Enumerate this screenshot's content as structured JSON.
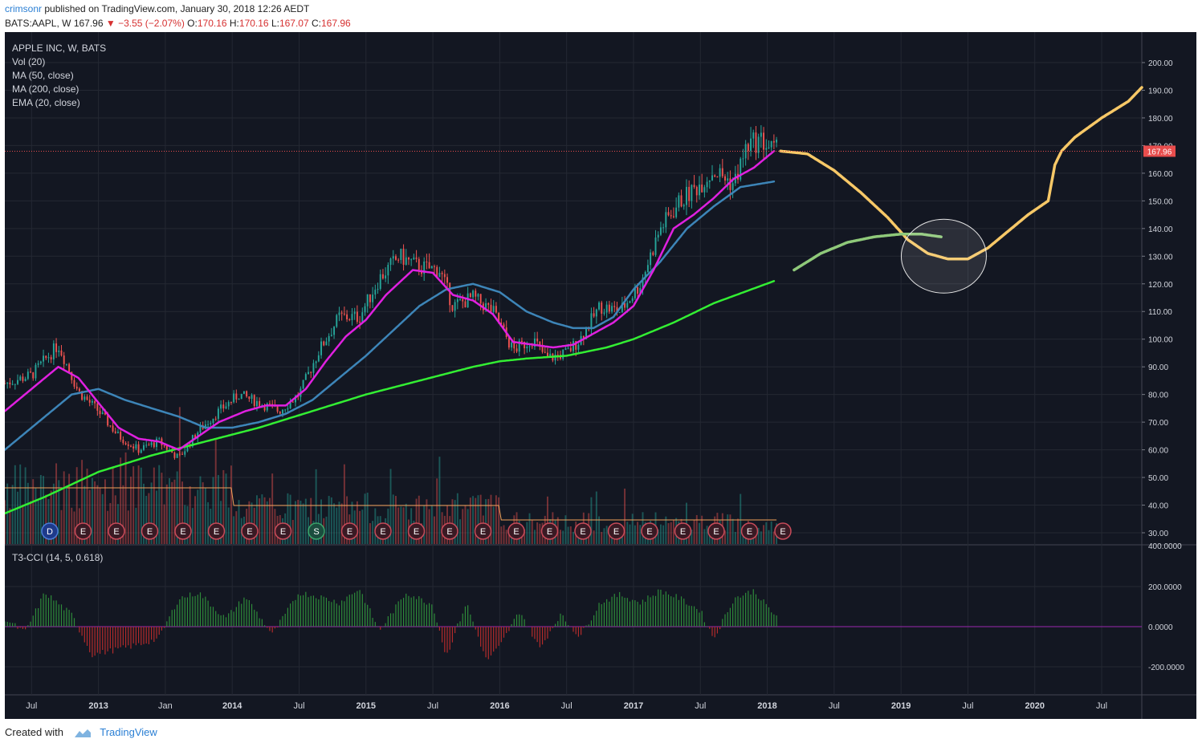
{
  "header": {
    "user": "crimsonr",
    "published": "published on TradingView.com, January 30, 2018 12:26 AEDT",
    "symbol": "BATS:AAPL, W",
    "last": "167.96",
    "change": "−3.55 (−2.07%)",
    "o_label": "O:",
    "o": "170.16",
    "h_label": "H:",
    "h": "170.16",
    "l_label": "L:",
    "l": "167.07",
    "c_label": "C:",
    "c": "167.96"
  },
  "legend": {
    "main": "APPLE INC, W, BATS",
    "vol": "Vol (20)",
    "ma50": "MA (50, close)",
    "ma200": "MA (200, close)",
    "ema20": "EMA (20, close)",
    "cci": "T3-CCI (14, 5, 0.618)"
  },
  "footer": {
    "created": "Created with",
    "brand": "TradingView"
  },
  "colors": {
    "background": "#131722",
    "up": "#26a69a",
    "down": "#ef5350",
    "ema20": "#e020e0",
    "ma50": "#3d85b8",
    "ma200": "#33ee33",
    "projection": "#f7c867",
    "projection_ma": "#8fc97a",
    "price_tag": "#e84d4d"
  },
  "chart_data": {
    "type": "candlestick",
    "title": "",
    "price_axis": {
      "ylim": [
        28,
        205
      ],
      "ticks": [
        "200.00",
        "190.00",
        "180.00",
        "170.00",
        "160.00",
        "150.00",
        "140.00",
        "130.00",
        "120.00",
        "110.00",
        "100.00",
        "90.00",
        "80.00",
        "70.00",
        "60.00",
        "50.00",
        "40.00",
        "30.00"
      ],
      "last_price_label": "167.96"
    },
    "cci_axis": {
      "ylim": [
        -400,
        400
      ],
      "ticks": [
        "400.0000",
        "200.0000",
        "0.0000",
        "-200.0000"
      ]
    },
    "time_axis": {
      "ticks": [
        "Jul",
        "2013",
        "Jan",
        "2014",
        "Jul",
        "2015",
        "Jul",
        "2016",
        "Jul",
        "2017",
        "Jul",
        "2018",
        "Jul",
        "2019",
        "Jul",
        "2020",
        "Jul"
      ],
      "tick_dates": [
        2012.5,
        2013.0,
        2013.5,
        2014.0,
        2014.5,
        2015.0,
        2015.5,
        2016.0,
        2016.5,
        2017.0,
        2017.5,
        2018.0,
        2018.5,
        2019.0,
        2019.5,
        2020.0,
        2020.5
      ],
      "xlim": [
        2012.3,
        2020.8
      ]
    },
    "price_anchors": {
      "x": [
        2012.3,
        2012.5,
        2012.7,
        2012.85,
        2013.0,
        2013.15,
        2013.3,
        2013.45,
        2013.6,
        2013.75,
        2013.9,
        2014.05,
        2014.2,
        2014.35,
        2014.5,
        2014.65,
        2014.8,
        2014.95,
        2015.1,
        2015.25,
        2015.4,
        2015.55,
        2015.65,
        2015.8,
        2015.95,
        2016.1,
        2016.25,
        2016.35,
        2016.5,
        2016.6,
        2016.75,
        2016.9,
        2017.05,
        2017.2,
        2017.35,
        2017.45,
        2017.6,
        2017.75,
        2017.85,
        2017.95,
        2018.05
      ],
      "close": [
        84,
        87,
        98,
        81,
        74,
        65,
        60,
        63,
        57,
        67,
        74,
        80,
        77,
        74,
        80,
        96,
        108,
        108,
        122,
        130,
        126,
        125,
        112,
        115,
        110,
        96,
        100,
        93,
        95,
        100,
        112,
        110,
        120,
        140,
        150,
        154,
        161,
        156,
        170,
        172,
        167.96
      ]
    },
    "ema20_anchors": {
      "x": [
        2012.3,
        2012.5,
        2012.7,
        2012.85,
        2013.0,
        2013.15,
        2013.3,
        2013.45,
        2013.6,
        2013.75,
        2013.9,
        2014.1,
        2014.25,
        2014.4,
        2014.55,
        2014.7,
        2014.85,
        2015.0,
        2015.15,
        2015.35,
        2015.5,
        2015.65,
        2015.8,
        2015.95,
        2016.1,
        2016.25,
        2016.4,
        2016.55,
        2016.7,
        2016.85,
        2017.0,
        2017.15,
        2017.3,
        2017.45,
        2017.6,
        2017.75,
        2017.9,
        2018.05
      ],
      "values": [
        74,
        82,
        90,
        86,
        77,
        68,
        64,
        63,
        60,
        65,
        70,
        74,
        76,
        76,
        82,
        92,
        101,
        107,
        116,
        125,
        124,
        116,
        114,
        109,
        99,
        98,
        97,
        98,
        102,
        106,
        112,
        125,
        140,
        145,
        151,
        158,
        162,
        168
      ]
    },
    "ma50_anchors": {
      "x": [
        2012.3,
        2012.5,
        2012.8,
        2013.0,
        2013.2,
        2013.4,
        2013.6,
        2013.8,
        2014.0,
        2014.2,
        2014.4,
        2014.6,
        2014.8,
        2015.0,
        2015.2,
        2015.4,
        2015.6,
        2015.8,
        2016.0,
        2016.2,
        2016.4,
        2016.55,
        2016.7,
        2016.85,
        2017.0,
        2017.2,
        2017.4,
        2017.6,
        2017.8,
        2018.05
      ],
      "values": [
        60,
        68,
        80,
        82,
        78,
        75,
        72,
        68,
        68,
        70,
        73,
        78,
        86,
        94,
        103,
        112,
        118,
        120,
        117,
        110,
        106,
        104,
        104,
        108,
        118,
        128,
        140,
        148,
        155,
        157
      ]
    },
    "ma200_anchors": {
      "x": [
        2012.3,
        2012.6,
        2013.0,
        2013.4,
        2013.8,
        2014.2,
        2014.6,
        2015.0,
        2015.4,
        2015.8,
        2016.0,
        2016.2,
        2016.5,
        2016.8,
        2017.0,
        2017.3,
        2017.6,
        2018.05
      ],
      "values": [
        37,
        43,
        52,
        58,
        63,
        68,
        74,
        80,
        85,
        90,
        92,
        93,
        94,
        97,
        100,
        106,
        113,
        121
      ]
    },
    "projection_anchors": {
      "x": [
        2018.1,
        2018.3,
        2018.5,
        2018.7,
        2018.9,
        2019.05,
        2019.2,
        2019.35,
        2019.5,
        2019.65,
        2019.8,
        2019.95,
        2020.1,
        2020.15,
        2020.2,
        2020.3,
        2020.5,
        2020.7,
        2020.8
      ],
      "values": [
        168,
        167,
        161,
        153,
        144,
        136,
        131,
        129,
        129,
        133,
        139,
        145,
        150,
        163,
        168,
        173,
        180,
        186,
        191
      ]
    },
    "projection_ma_anchors": {
      "x": [
        2018.2,
        2018.4,
        2018.6,
        2018.8,
        2019.0,
        2019.15,
        2019.3
      ],
      "values": [
        125,
        131,
        135,
        137,
        138,
        138,
        137
      ]
    },
    "earnings_markers": [
      "D",
      "E",
      "E",
      "E",
      "E",
      "E",
      "E",
      "E",
      "S",
      "E",
      "E",
      "E",
      "E",
      "E",
      "E",
      "E",
      "E",
      "E",
      "E",
      "E",
      "E",
      "E",
      "E"
    ],
    "annotation": "circle around projected 2019 low near 130"
  }
}
